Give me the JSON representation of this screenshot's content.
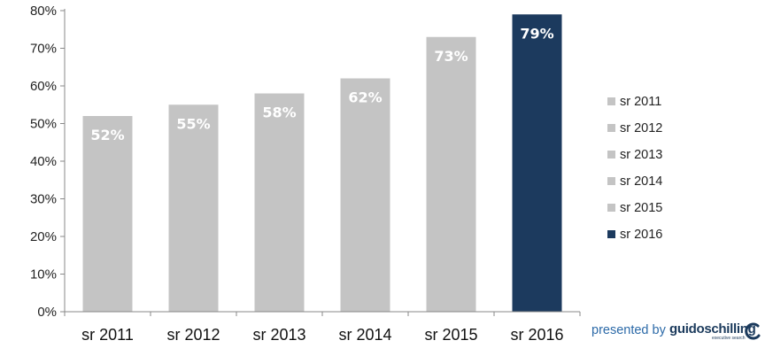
{
  "chart_data": {
    "type": "bar",
    "categories": [
      "sr 2011",
      "sr 2012",
      "sr 2013",
      "sr 2014",
      "sr 2015",
      "sr 2016"
    ],
    "values": [
      52,
      55,
      58,
      62,
      73,
      79
    ],
    "data_labels": [
      "52%",
      "55%",
      "58%",
      "62%",
      "73%",
      "79%"
    ],
    "ylim": [
      0,
      80
    ],
    "yticks": [
      "0%",
      "10%",
      "20%",
      "30%",
      "40%",
      "50%",
      "60%",
      "70%",
      "80%"
    ],
    "ytick_values": [
      0,
      10,
      20,
      30,
      40,
      50,
      60,
      70,
      80
    ],
    "legend": {
      "placement": "right",
      "entries": [
        "sr 2011",
        "sr 2012",
        "sr 2013",
        "sr 2014",
        "sr 2015",
        "sr 2016"
      ]
    },
    "colors": [
      "#c4c4c4",
      "#c4c4c4",
      "#c4c4c4",
      "#c4c4c4",
      "#c4c4c4",
      "#1c3a5e"
    ],
    "grid": false
  },
  "footer": {
    "presented_by": "presented by",
    "brand": "guidoschilling",
    "brand_sub": "executive search"
  },
  "colors": {
    "highlight": "#1c3a5e",
    "bar": "#c4c4c4",
    "footer_text": "#2c6aa8",
    "brand": "#1b3a5c"
  },
  "icons": {
    "brand_logo": "guidoschilling-logo-icon"
  }
}
